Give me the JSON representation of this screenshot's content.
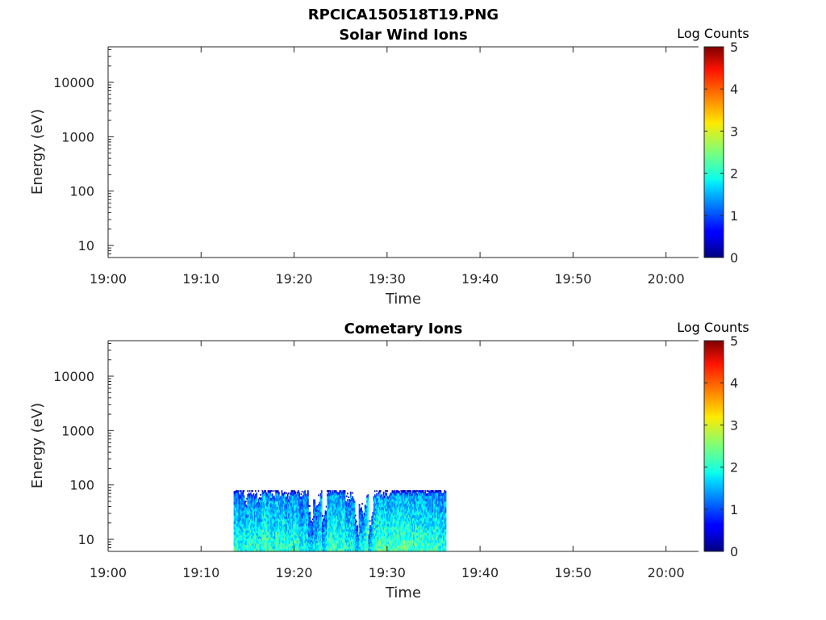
{
  "figure_title": "RPCICA150518T19.PNG",
  "colors": {
    "colormap": "jet",
    "axis": "#262626",
    "background": "#ffffff"
  },
  "chart_data": [
    {
      "type": "heatmap",
      "title": "Solar Wind Ions",
      "xlabel": "Time",
      "ylabel": "Energy (eV)",
      "y_scale": "log",
      "ylim": [
        6,
        45000
      ],
      "x_tick_labels": [
        "19:00",
        "19:10",
        "19:20",
        "19:30",
        "19:40",
        "19:50",
        "20:00"
      ],
      "x_tick_minutes": [
        0,
        10,
        20,
        30,
        40,
        50,
        60
      ],
      "xlim_minutes": [
        0,
        63.5
      ],
      "y_ticks": [
        10,
        100,
        1000,
        10000
      ],
      "y_tick_labels": [
        "10",
        "100",
        "1000",
        "10000"
      ],
      "colorbar": {
        "label": "Log Counts",
        "range": [
          0,
          5
        ],
        "ticks": [
          "0",
          "1",
          "2",
          "3",
          "4",
          "5"
        ]
      },
      "data": []
    },
    {
      "type": "heatmap",
      "title": "Cometary Ions",
      "xlabel": "Time",
      "ylabel": "Energy (eV)",
      "y_scale": "log",
      "ylim": [
        6,
        45000
      ],
      "x_tick_labels": [
        "19:00",
        "19:10",
        "19:20",
        "19:30",
        "19:40",
        "19:50",
        "20:00"
      ],
      "x_tick_minutes": [
        0,
        10,
        20,
        30,
        40,
        50,
        60
      ],
      "xlim_minutes": [
        0,
        63.5
      ],
      "y_ticks": [
        10,
        100,
        1000,
        10000
      ],
      "y_tick_labels": [
        "10",
        "100",
        "1000",
        "10000"
      ],
      "colorbar": {
        "label": "Log Counts",
        "range": [
          0,
          5
        ],
        "ticks": [
          "0",
          "1",
          "2",
          "3",
          "4",
          "5"
        ]
      },
      "data_extent": {
        "time_start": "19:13:30",
        "time_end": "19:36:20",
        "energy_min_eV": 6,
        "energy_max_eV": 80
      },
      "column_summary": [
        {
          "time": "19:14",
          "top_eV": 75,
          "level": 1.6
        },
        {
          "time": "19:15",
          "top_eV": 80,
          "level": 2.0
        },
        {
          "time": "19:16",
          "top_eV": 45,
          "level": 1.8
        },
        {
          "time": "19:17",
          "top_eV": 80,
          "level": 1.9
        },
        {
          "time": "19:18",
          "top_eV": 80,
          "level": 2.1
        },
        {
          "time": "19:19",
          "top_eV": 55,
          "level": 1.7
        },
        {
          "time": "19:20",
          "top_eV": 80,
          "level": 2.0
        },
        {
          "time": "19:21",
          "top_eV": 75,
          "level": 1.8
        },
        {
          "time": "19:22",
          "top_eV": 65,
          "level": 1.6
        },
        {
          "time": "19:23",
          "top_eV": 20,
          "level": 1.4
        },
        {
          "time": "19:24",
          "top_eV": 80,
          "level": 1.9
        },
        {
          "time": "19:25",
          "top_eV": 80,
          "level": 2.0
        },
        {
          "time": "19:26",
          "top_eV": 70,
          "level": 1.8
        },
        {
          "time": "19:27",
          "top_eV": 50,
          "level": 1.7
        },
        {
          "time": "19:28",
          "top_eV": 12,
          "level": 1.3
        },
        {
          "time": "19:29",
          "top_eV": 80,
          "level": 2.2
        },
        {
          "time": "19:30",
          "top_eV": 60,
          "level": 1.9
        },
        {
          "time": "19:31",
          "top_eV": 80,
          "level": 2.1
        },
        {
          "time": "19:32",
          "top_eV": 80,
          "level": 2.0
        },
        {
          "time": "19:33",
          "top_eV": 80,
          "level": 2.1
        },
        {
          "time": "19:34",
          "top_eV": 80,
          "level": 1.9
        },
        {
          "time": "19:35",
          "top_eV": 80,
          "level": 2.0
        },
        {
          "time": "19:36",
          "top_eV": 80,
          "level": 1.8
        }
      ]
    }
  ]
}
